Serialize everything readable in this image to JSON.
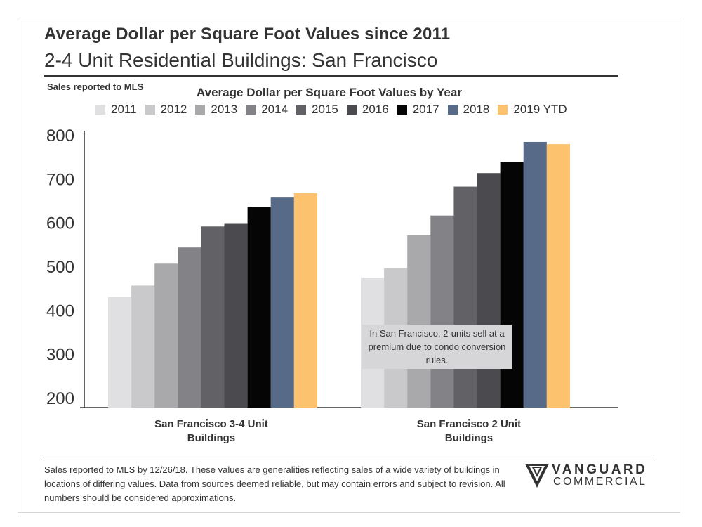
{
  "header": {
    "title": "Average Dollar per Square Foot Values since 2011",
    "subtitle": "2-4 Unit Residential Buildings: San Francisco",
    "sales_note": "Sales reported to MLS"
  },
  "chart_data": {
    "type": "bar",
    "title": "Average Dollar per Square Foot Values by Year",
    "categories": [
      "San Francisco 3-4 Unit Buildings",
      "San Francisco 2 Unit Buildings"
    ],
    "category_lines": [
      [
        "San Francisco 3-4 Unit",
        "Buildings"
      ],
      [
        "San Francisco 2 Unit",
        "Buildings"
      ]
    ],
    "series": [
      {
        "name": "2011",
        "color": "#e0e0e2",
        "values": [
          430,
          474
        ]
      },
      {
        "name": "2012",
        "color": "#c9c8cb",
        "values": [
          456,
          496
        ]
      },
      {
        "name": "2013",
        "color": "#a9a8ab",
        "values": [
          506,
          571
        ]
      },
      {
        "name": "2014",
        "color": "#838286",
        "values": [
          543,
          616
        ]
      },
      {
        "name": "2015",
        "color": "#626166",
        "values": [
          591,
          682
        ]
      },
      {
        "name": "2016",
        "color": "#4a4a4f",
        "values": [
          597,
          713
        ]
      },
      {
        "name": "2017",
        "color": "#050505",
        "values": [
          636,
          738
        ]
      },
      {
        "name": "2018",
        "color": "#576a88",
        "values": [
          657,
          784
        ]
      },
      {
        "name": "2019 YTD",
        "color": "#fcc26d",
        "values": [
          667,
          779
        ]
      }
    ],
    "yticks": [
      200,
      300,
      400,
      500,
      600,
      700,
      800
    ],
    "ylim": [
      180,
      800
    ],
    "legend_position": "top",
    "grid": false,
    "annotation": "In San Francisco, 2-units sell at a premium due to condo conversion rules."
  },
  "footer": {
    "note": "Sales reported to MLS by 12/26/18. These values are generalities reflecting sales of a wide variety of buildings in locations of differing values. Data from sources deemed reliable, but may contain errors and subject to revision. All numbers should be considered approximations."
  },
  "logo": {
    "name": "VANGUARD",
    "sub": "COMMERCIAL"
  }
}
